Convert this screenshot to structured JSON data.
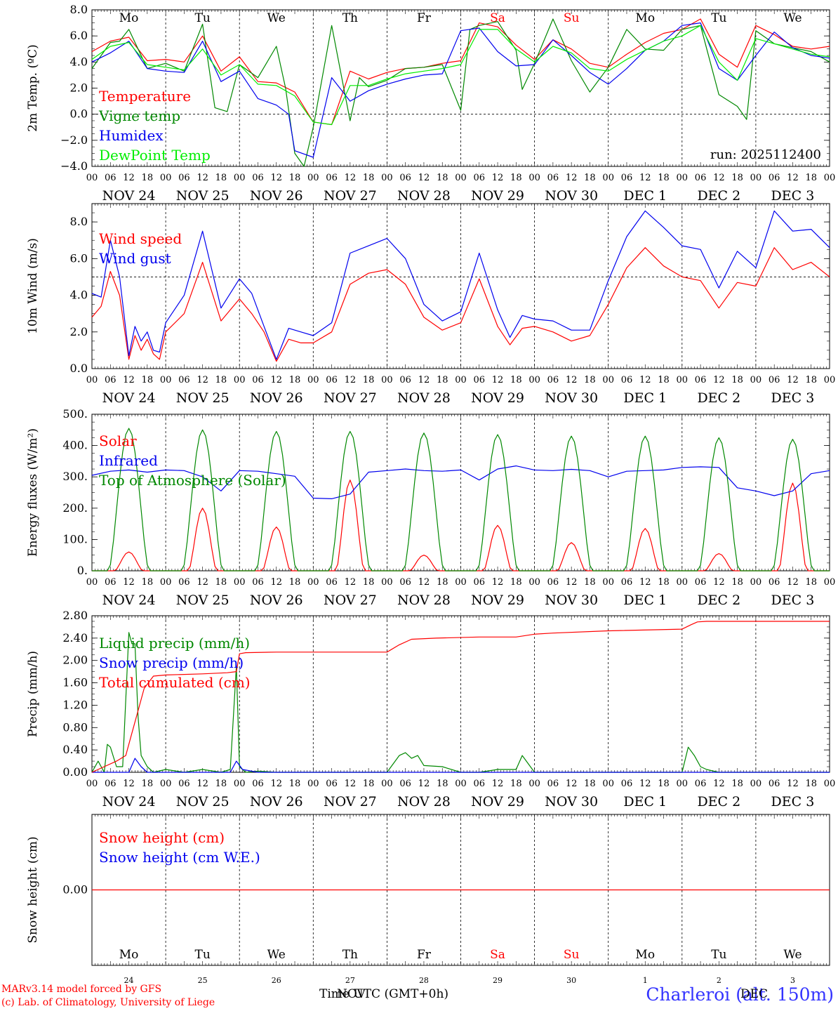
{
  "days": [
    {
      "abbr": "Mo",
      "label": "NOV 24",
      "num": "24",
      "weekend": false
    },
    {
      "abbr": "Tu",
      "label": "NOV 25",
      "num": "25",
      "weekend": false
    },
    {
      "abbr": "We",
      "label": "NOV 26",
      "num": "26",
      "weekend": false
    },
    {
      "abbr": "Th",
      "label": "NOV 27",
      "num": "27",
      "weekend": false
    },
    {
      "abbr": "Fr",
      "label": "NOV 28",
      "num": "28",
      "weekend": false
    },
    {
      "abbr": "Sa",
      "label": "NOV 29",
      "num": "29",
      "weekend": true
    },
    {
      "abbr": "Su",
      "label": "NOV 30",
      "num": "30",
      "weekend": true
    },
    {
      "abbr": "Mo",
      "label": "DEC  1",
      "num": "1",
      "weekend": false
    },
    {
      "abbr": "Tu",
      "label": "DEC  2",
      "num": "2",
      "weekend": false
    },
    {
      "abbr": "We",
      "label": "DEC  3",
      "num": "3",
      "weekend": false
    }
  ],
  "hour_ticks": [
    "00",
    "06",
    "12",
    "18"
  ],
  "colors": {
    "red": "#ff0000",
    "green": "#008800",
    "blue": "#0000ee",
    "lime": "#00ee00",
    "weekend": "#ff0000"
  },
  "footer": {
    "model": "MARv3.14 model forced by GFS",
    "lab": "(c) Lab. of Climatology, University of Liege",
    "axis_title": "Time UTC (GMT+0h)",
    "axis_overlay": "NOV",
    "station": "Charleroi (alt. 150m)",
    "dec_overlay": "DEC"
  },
  "chart_data": [
    {
      "id": "temperature",
      "type": "line",
      "ylabel": "2m Temp. (ºC)",
      "ylim": [
        -4,
        8
      ],
      "yticks": [
        "8.0",
        "6.0",
        "4.0",
        "2.0",
        "0.0",
        "−2.0",
        "−4.0"
      ],
      "ytick_values": [
        8,
        6,
        4,
        2,
        0,
        -2,
        -4
      ],
      "dashed_y": 0,
      "show_day_abbr": true,
      "annotation": "run: 2025112400",
      "x_unit": "hours since NOV 24 00 UTC",
      "series": [
        {
          "name": "Temperature",
          "color": "red",
          "x": [
            0,
            6,
            12,
            18,
            24,
            30,
            36,
            42,
            48,
            54,
            60,
            66,
            72,
            78,
            84,
            90,
            96,
            102,
            108,
            114,
            120,
            126,
            132,
            138,
            144,
            150,
            156,
            162,
            168,
            174,
            180,
            186,
            192,
            198,
            204,
            210,
            216,
            222,
            228,
            234,
            240
          ],
          "y": [
            4.8,
            5.6,
            5.9,
            4.1,
            4.2,
            4.0,
            6.0,
            3.3,
            4.4,
            2.5,
            2.4,
            1.7,
            -0.6,
            -0.8,
            3.3,
            2.7,
            3.2,
            3.5,
            3.6,
            3.9,
            4.1,
            7.0,
            6.7,
            5.3,
            4.2,
            5.7,
            5.0,
            3.9,
            3.6,
            4.6,
            5.5,
            6.2,
            6.5,
            7.3,
            4.6,
            3.6,
            6.8,
            6.1,
            5.2,
            5.0,
            5.2
          ]
        },
        {
          "name": "Vigne temp",
          "color": "green",
          "x": [
            0,
            6,
            9,
            12,
            15,
            18,
            24,
            30,
            36,
            40,
            44,
            48,
            54,
            60,
            63,
            66,
            69,
            72,
            78,
            84,
            87,
            90,
            96,
            102,
            108,
            114,
            120,
            123,
            126,
            132,
            138,
            140,
            144,
            150,
            156,
            162,
            168,
            174,
            180,
            186,
            192,
            198,
            204,
            210,
            213,
            216,
            222,
            228,
            234,
            240
          ],
          "y": [
            3.5,
            5.5,
            5.6,
            6.5,
            5.0,
            3.5,
            3.9,
            3.3,
            6.9,
            0.5,
            0.2,
            3.8,
            2.8,
            5.2,
            2.0,
            -3.0,
            -4.0,
            -1.0,
            6.8,
            -0.5,
            2.8,
            2.1,
            2.6,
            3.5,
            3.6,
            3.8,
            0.3,
            6.5,
            6.8,
            7.1,
            4.9,
            1.9,
            3.9,
            7.3,
            4.1,
            1.7,
            3.6,
            6.5,
            5.0,
            4.9,
            6.5,
            6.8,
            1.5,
            0.6,
            -0.4,
            6.4,
            5.4,
            5.1,
            4.8,
            4.0
          ]
        },
        {
          "name": "Humidex",
          "color": "blue",
          "x": [
            0,
            6,
            12,
            18,
            24,
            30,
            36,
            42,
            48,
            54,
            60,
            64,
            66,
            72,
            78,
            84,
            90,
            96,
            102,
            108,
            114,
            120,
            126,
            132,
            138,
            144,
            150,
            156,
            162,
            168,
            174,
            180,
            186,
            192,
            198,
            204,
            210,
            216,
            222,
            228,
            234,
            240
          ],
          "y": [
            4.0,
            4.7,
            5.6,
            3.5,
            3.3,
            3.2,
            5.6,
            2.5,
            3.3,
            1.2,
            0.7,
            0.0,
            -2.8,
            -3.3,
            2.8,
            1.0,
            1.8,
            2.3,
            2.7,
            3.0,
            3.1,
            6.4,
            6.6,
            4.8,
            3.7,
            3.8,
            5.7,
            4.5,
            3.2,
            2.3,
            3.5,
            4.9,
            5.6,
            6.8,
            7.0,
            3.5,
            2.6,
            4.5,
            6.3,
            5.1,
            4.5,
            4.3
          ]
        },
        {
          "name": "DewPoint Temp",
          "color": "lime",
          "x": [
            0,
            6,
            12,
            18,
            24,
            30,
            36,
            42,
            48,
            54,
            60,
            66,
            72,
            78,
            84,
            90,
            96,
            102,
            108,
            114,
            120,
            126,
            132,
            138,
            144,
            150,
            156,
            162,
            168,
            174,
            180,
            186,
            192,
            198,
            204,
            210,
            216,
            222,
            228,
            234,
            240
          ],
          "y": [
            4.2,
            5.2,
            5.5,
            3.8,
            3.6,
            3.4,
            5.0,
            3.0,
            3.8,
            2.3,
            2.2,
            1.4,
            -0.6,
            -0.8,
            2.2,
            2.2,
            2.7,
            3.1,
            3.3,
            3.5,
            3.8,
            6.5,
            6.5,
            5.0,
            4.0,
            5.2,
            4.7,
            3.5,
            3.3,
            4.2,
            4.9,
            5.6,
            6.0,
            6.8,
            4.0,
            2.6,
            5.8,
            5.4,
            5.0,
            4.6,
            4.4
          ]
        }
      ]
    },
    {
      "id": "wind",
      "type": "line",
      "ylabel": "10m Wind (m/s)",
      "ylim": [
        0,
        9
      ],
      "yticks": [
        "8.0",
        "6.0",
        "4.0",
        "2.0",
        "0.0"
      ],
      "ytick_values": [
        8,
        6,
        4,
        2,
        0
      ],
      "dashed_y": 5,
      "show_day_abbr": false,
      "x_unit": "hours since NOV 24 00 UTC",
      "series": [
        {
          "name": "Wind speed",
          "color": "red",
          "x": [
            0,
            3,
            6,
            9,
            12,
            14,
            16,
            18,
            20,
            22,
            24,
            30,
            36,
            42,
            48,
            52,
            56,
            60,
            64,
            68,
            72,
            78,
            84,
            90,
            96,
            102,
            108,
            114,
            120,
            126,
            132,
            136,
            140,
            144,
            150,
            156,
            162,
            168,
            174,
            180,
            186,
            192,
            198,
            204,
            210,
            216,
            222,
            228,
            234,
            240
          ],
          "y": [
            2.8,
            3.4,
            5.3,
            4.0,
            0.5,
            1.8,
            1.0,
            1.6,
            0.8,
            0.5,
            2.0,
            3.0,
            5.8,
            2.6,
            3.8,
            3.0,
            2.0,
            0.4,
            1.6,
            1.4,
            1.4,
            2.0,
            4.6,
            5.2,
            5.4,
            4.6,
            2.8,
            2.1,
            2.5,
            4.9,
            2.3,
            1.3,
            2.2,
            2.3,
            2.0,
            1.5,
            1.8,
            3.5,
            5.5,
            6.6,
            5.6,
            5.0,
            4.8,
            3.3,
            4.7,
            4.5,
            6.6,
            5.4,
            5.8,
            5.0
          ]
        },
        {
          "name": "Wind gust",
          "color": "blue",
          "x": [
            0,
            3,
            6,
            9,
            12,
            14,
            16,
            18,
            20,
            22,
            24,
            30,
            36,
            42,
            48,
            52,
            56,
            60,
            64,
            68,
            72,
            78,
            84,
            90,
            96,
            102,
            108,
            114,
            120,
            126,
            132,
            136,
            140,
            144,
            150,
            156,
            162,
            168,
            174,
            180,
            186,
            192,
            198,
            204,
            210,
            216,
            222,
            228,
            234,
            240
          ],
          "y": [
            4.1,
            3.9,
            7.0,
            5.0,
            0.7,
            2.3,
            1.5,
            2.0,
            1.0,
            0.9,
            2.5,
            4.0,
            7.5,
            3.3,
            4.9,
            4.1,
            2.3,
            0.5,
            2.2,
            2.0,
            1.8,
            2.5,
            6.3,
            6.7,
            7.1,
            6.0,
            3.5,
            2.6,
            3.1,
            6.3,
            3.2,
            1.7,
            2.9,
            2.7,
            2.6,
            2.1,
            2.1,
            4.8,
            7.2,
            8.6,
            7.7,
            6.7,
            6.5,
            4.4,
            6.4,
            5.5,
            8.6,
            7.5,
            7.6,
            6.6
          ]
        }
      ]
    },
    {
      "id": "energy",
      "type": "line",
      "ylabel": "Energy fluxes (W/m²)",
      "ylim": [
        0,
        500
      ],
      "yticks": [
        "500.",
        "400.",
        "300.",
        "200.",
        "100.",
        "0."
      ],
      "ytick_values": [
        500,
        400,
        300,
        200,
        100,
        0
      ],
      "dashed_y": null,
      "show_day_abbr": false,
      "x_unit": "hours since NOV 24 00 UTC",
      "solar_peaks": [
        60,
        200,
        140,
        290,
        50,
        145,
        90,
        135,
        55,
        280
      ],
      "toa_peaks": [
        455,
        450,
        445,
        445,
        440,
        435,
        430,
        430,
        425,
        420
      ],
      "series": [
        {
          "name": "Solar",
          "color": "red",
          "derived": "solar_peaks"
        },
        {
          "name": "Infrared",
          "color": "blue",
          "x": [
            0,
            6,
            12,
            18,
            24,
            30,
            36,
            42,
            48,
            54,
            60,
            66,
            72,
            78,
            84,
            90,
            96,
            102,
            108,
            114,
            120,
            126,
            132,
            138,
            144,
            150,
            156,
            162,
            168,
            174,
            180,
            186,
            192,
            198,
            204,
            210,
            216,
            222,
            228,
            234,
            240
          ],
          "y": [
            305,
            318,
            322,
            315,
            322,
            320,
            300,
            255,
            320,
            318,
            310,
            302,
            232,
            230,
            245,
            315,
            320,
            325,
            320,
            318,
            322,
            290,
            325,
            335,
            322,
            320,
            324,
            320,
            300,
            318,
            320,
            322,
            330,
            332,
            330,
            265,
            255,
            240,
            255,
            310,
            320
          ]
        },
        {
          "name": "Top of Atmosphere (Solar)",
          "color": "green",
          "derived": "toa_peaks"
        }
      ]
    },
    {
      "id": "precip",
      "type": "line",
      "ylabel": "Precip (mm/h)",
      "ylim": [
        0,
        2.8
      ],
      "yticks": [
        "2.80",
        "2.40",
        "2.00",
        "1.60",
        "1.20",
        "0.80",
        "0.40",
        "0.00"
      ],
      "ytick_values": [
        2.8,
        2.4,
        2.0,
        1.6,
        1.2,
        0.8,
        0.4,
        0.0
      ],
      "dashed_y": null,
      "show_day_abbr": false,
      "x_unit": "hours since NOV 24 00 UTC",
      "series": [
        {
          "name": "Liquid precip (mm/h)",
          "color": "green",
          "x": [
            0,
            2,
            4,
            5,
            6,
            8,
            10,
            12,
            13,
            14,
            15,
            16,
            18,
            20,
            24,
            30,
            36,
            42,
            45,
            47,
            48,
            50,
            54,
            60,
            72,
            96,
            100,
            102,
            104,
            106,
            108,
            114,
            120,
            126,
            132,
            138,
            140,
            144,
            150,
            156,
            168,
            192,
            194,
            196,
            198,
            200,
            204,
            216,
            228,
            240
          ],
          "y": [
            0,
            0.2,
            0,
            0.5,
            0.45,
            0.1,
            0.1,
            2.5,
            2.3,
            2.3,
            1.0,
            0.3,
            0.1,
            0,
            0.05,
            0,
            0.05,
            0,
            0.05,
            1.9,
            0.1,
            0,
            0.02,
            0,
            0,
            0,
            0.3,
            0.35,
            0.25,
            0.3,
            0.12,
            0.1,
            0,
            0,
            0.05,
            0.05,
            0.3,
            0,
            0,
            0,
            0,
            0,
            0.45,
            0.3,
            0.1,
            0.05,
            0,
            0,
            0,
            0
          ]
        },
        {
          "name": "Snow precip (mm/h)",
          "color": "blue",
          "x": [
            0,
            12,
            14,
            16,
            18,
            24,
            45,
            47,
            49,
            54,
            240
          ],
          "y": [
            0,
            0,
            0.25,
            0.1,
            0,
            0,
            0,
            0.2,
            0.05,
            0,
            0
          ]
        },
        {
          "name": "Total cumulated (cm)",
          "color": "red",
          "x": [
            0,
            4,
            8,
            11,
            13,
            15,
            17,
            20,
            24,
            36,
            44,
            47,
            48,
            50,
            60,
            96,
            100,
            104,
            112,
            126,
            138,
            144,
            150,
            168,
            192,
            195,
            197,
            200,
            210,
            240
          ],
          "y": [
            0,
            0.1,
            0.2,
            0.3,
            0.7,
            1.1,
            1.5,
            1.72,
            1.74,
            1.76,
            1.78,
            1.8,
            2.12,
            2.14,
            2.15,
            2.15,
            2.28,
            2.38,
            2.4,
            2.42,
            2.42,
            2.47,
            2.49,
            2.53,
            2.56,
            2.64,
            2.69,
            2.7,
            2.7,
            2.7
          ]
        }
      ]
    },
    {
      "id": "snow",
      "type": "line",
      "ylabel": "Snow height (cm)",
      "ylim": [
        -1,
        1
      ],
      "yticks": [
        "0.00"
      ],
      "ytick_values": [
        0
      ],
      "dashed_y": null,
      "show_day_abbr": false,
      "x_unit": "hours since NOV 24 00 UTC",
      "series": [
        {
          "name": "Snow height (cm)",
          "color": "red",
          "x": [
            0,
            240
          ],
          "y": [
            0,
            0
          ]
        },
        {
          "name": "Snow height (cm W.E.)",
          "color": "blue",
          "x": [],
          "y": []
        }
      ]
    }
  ]
}
